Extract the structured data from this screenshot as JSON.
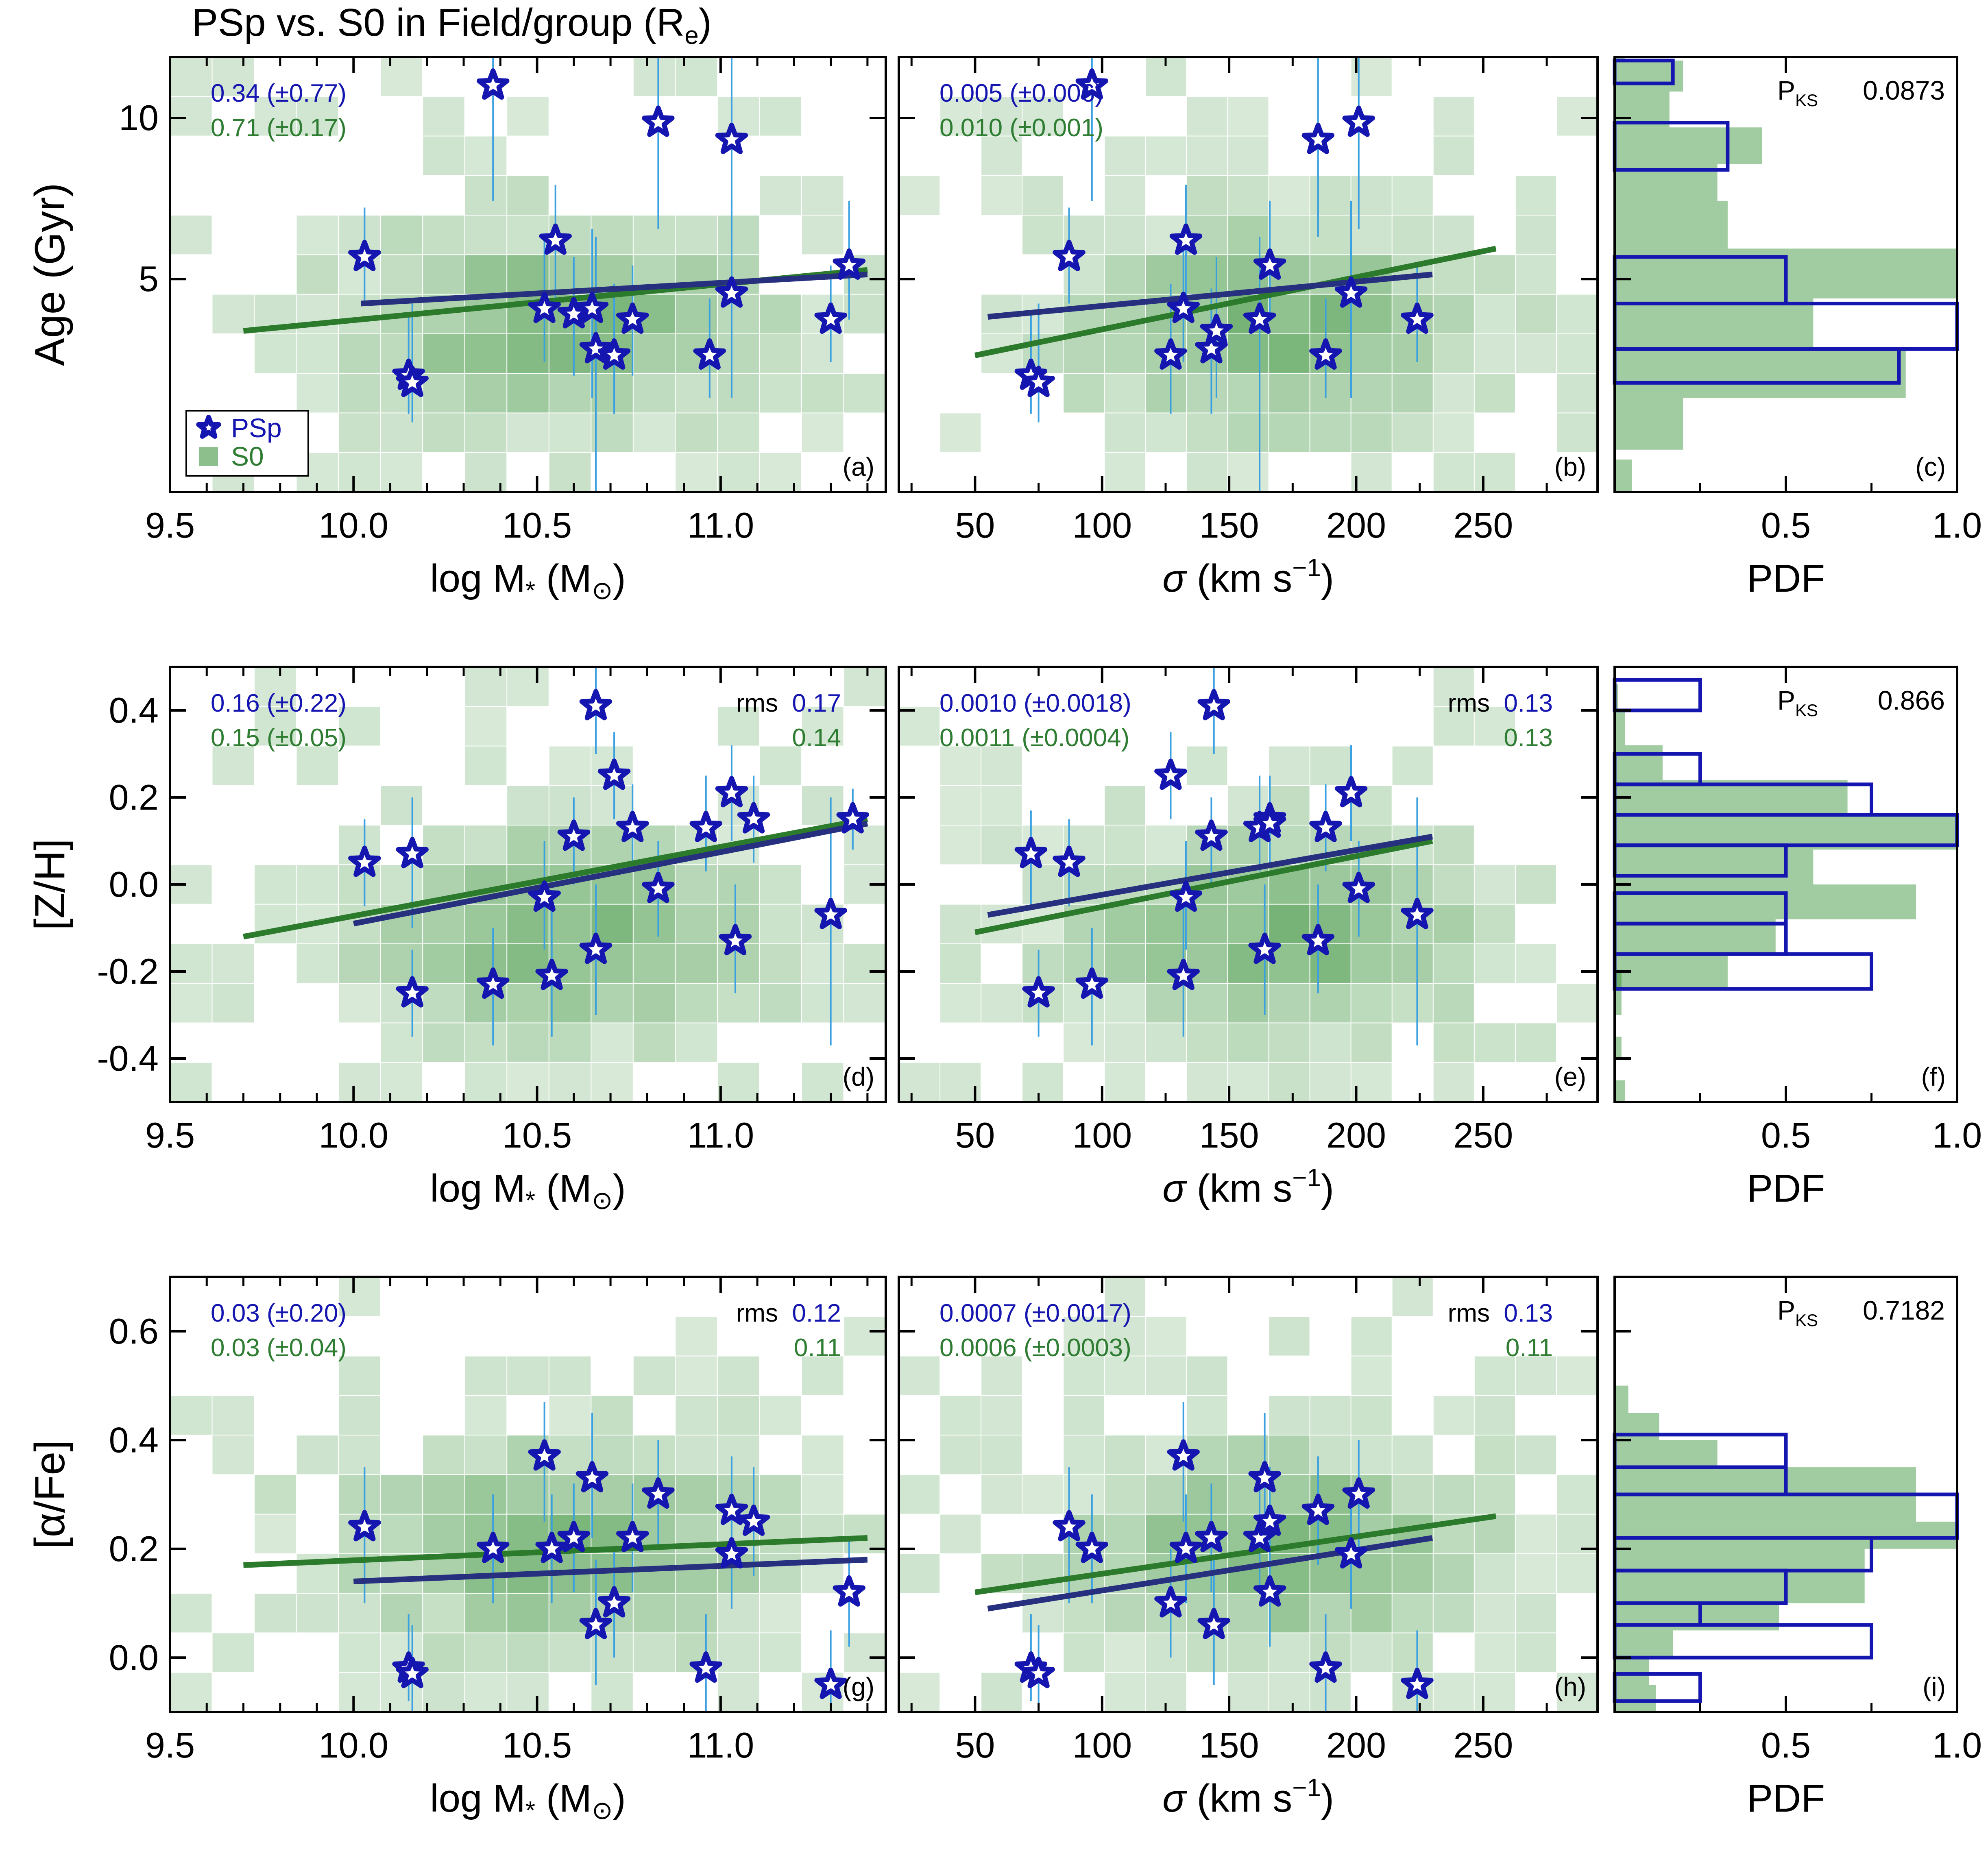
{
  "figure": {
    "title": "PSp vs. S0 in Field/group (R",
    "title_sub": "e",
    "title_close": ")"
  },
  "colors": {
    "psp": "#1515b0",
    "s0": "#2e7d32",
    "psp_fit": "#27307e",
    "s0_fit": "#2c7a2c",
    "err": "#3aa0e0",
    "cell": "#2e8b2e"
  },
  "legend": {
    "psp": "PSp",
    "s0": "S0"
  },
  "pks_label": "P",
  "pks_sub": "KS",
  "axes": {
    "mass_label": "log M",
    "mass_label_star": "*",
    "mass_label_open": " (M",
    "mass_label_close": ")",
    "sigma_symbol": "σ",
    "sigma_label": " (km s",
    "sigma_exp": "−1",
    "sigma_close": ")",
    "pdf_label": "PDF",
    "mass_ticks": [
      "9.5",
      "10.0",
      "10.5",
      "11.0"
    ],
    "sigma_ticks": [
      "50",
      "100",
      "150",
      "200",
      "250"
    ],
    "pdf_ticks": [
      "0.5",
      "1.0"
    ]
  },
  "chart_data": [
    {
      "type": "scatter",
      "panel": "a",
      "ylabel": "Age (Gyr)",
      "ylog": true,
      "xlim": [
        9.5,
        11.45
      ],
      "ylim": [
        2.0,
        13.0
      ],
      "yticks": [
        "5",
        "10"
      ],
      "ytick_values": [
        5,
        10
      ],
      "psp_fit_text": "0.34  (±0.77)",
      "s0_fit_text": "0.71  (±0.17)",
      "psp_line": [
        [
          10.02,
          4.5
        ],
        [
          11.4,
          5.1
        ]
      ],
      "s0_line": [
        [
          9.7,
          4.0
        ],
        [
          11.4,
          5.2
        ]
      ],
      "psp_points": [
        [
          10.03,
          5.5,
          4.5,
          6.8
        ],
        [
          10.15,
          3.3,
          2.8,
          4.3
        ],
        [
          10.16,
          3.2,
          2.7,
          4.5
        ],
        [
          10.38,
          11.5,
          7.0,
          13.0
        ],
        [
          10.52,
          4.4,
          3.5,
          6.0
        ],
        [
          10.55,
          5.9,
          4.5,
          7.5
        ],
        [
          10.6,
          4.3,
          3.3,
          5.5
        ],
        [
          10.65,
          4.4,
          3.0,
          6.2
        ],
        [
          10.66,
          3.7,
          2.0,
          6.0
        ],
        [
          10.71,
          3.6,
          2.8,
          4.9
        ],
        [
          10.76,
          4.2,
          3.3,
          5.3
        ],
        [
          10.83,
          9.8,
          6.2,
          13.0
        ],
        [
          10.97,
          3.6,
          3.0,
          4.6
        ],
        [
          11.03,
          4.7,
          3.0,
          7.0
        ],
        [
          11.03,
          9.1,
          6.0,
          13.0
        ],
        [
          11.3,
          4.2,
          3.5,
          5.3
        ],
        [
          11.35,
          5.3,
          4.2,
          7.0
        ]
      ]
    },
    {
      "type": "scatter",
      "panel": "b",
      "ylabel": "",
      "ylog": true,
      "xlim": [
        20,
        295
      ],
      "ylim": [
        2.0,
        13.0
      ],
      "yticks": [
        "5",
        "10"
      ],
      "ytick_values": [
        5,
        10
      ],
      "psp_fit_text": "0.005  (±0.006)",
      "s0_fit_text": "0.010  (±0.001)",
      "psp_line": [
        [
          55,
          4.25
        ],
        [
          230,
          5.1
        ]
      ],
      "s0_line": [
        [
          50,
          3.6
        ],
        [
          255,
          5.7
        ]
      ],
      "psp_points": [
        [
          72,
          3.3,
          2.8,
          4.3
        ],
        [
          75,
          3.2,
          2.7,
          4.5
        ],
        [
          87,
          5.5,
          4.5,
          6.8
        ],
        [
          96,
          11.5,
          7.0,
          13.0
        ],
        [
          127,
          3.6,
          2.8,
          4.9
        ],
        [
          132,
          4.4,
          3.5,
          6.0
        ],
        [
          133,
          5.9,
          4.5,
          7.5
        ],
        [
          143,
          3.7,
          2.8,
          4.8
        ],
        [
          145,
          4.0,
          3.0,
          5.5
        ],
        [
          162,
          4.2,
          2.0,
          6.0
        ],
        [
          166,
          5.3,
          4.2,
          7.0
        ],
        [
          185,
          9.1,
          6.0,
          13.0
        ],
        [
          188,
          3.6,
          3.0,
          4.6
        ],
        [
          198,
          4.7,
          3.0,
          7.0
        ],
        [
          201,
          9.8,
          6.2,
          13.0
        ],
        [
          224,
          4.2,
          3.5,
          5.3
        ]
      ]
    },
    {
      "type": "scatter",
      "panel": "d",
      "ylabel": "[Z/H]",
      "ylog": false,
      "xlim": [
        9.5,
        11.45
      ],
      "ylim": [
        -0.5,
        0.5
      ],
      "yticks": [
        "-0.4",
        "-0.2",
        "0.0",
        "0.2",
        "0.4"
      ],
      "ytick_values": [
        -0.4,
        -0.2,
        0.0,
        0.2,
        0.4
      ],
      "psp_fit_text": "0.16  (±0.22)",
      "s0_fit_text": "0.15  (±0.05)",
      "rms_label": "rms",
      "psp_rms": "0.17",
      "s0_rms": "0.14",
      "psp_line": [
        [
          10.0,
          -0.09
        ],
        [
          11.4,
          0.14
        ]
      ],
      "s0_line": [
        [
          9.7,
          -0.12
        ],
        [
          11.4,
          0.15
        ]
      ],
      "psp_points": [
        [
          10.03,
          0.05,
          -0.05,
          0.15
        ],
        [
          10.16,
          0.07,
          -0.1,
          0.2
        ],
        [
          10.16,
          -0.25,
          -0.35,
          -0.15
        ],
        [
          10.38,
          -0.23,
          -0.37,
          -0.1
        ],
        [
          10.52,
          -0.03,
          -0.15,
          0.1
        ],
        [
          10.54,
          -0.21,
          -0.35,
          -0.05
        ],
        [
          10.6,
          0.11,
          0.0,
          0.2
        ],
        [
          10.66,
          -0.15,
          -0.3,
          0.0
        ],
        [
          10.66,
          0.41,
          0.3,
          0.5
        ],
        [
          10.71,
          0.25,
          0.15,
          0.35
        ],
        [
          10.76,
          0.13,
          0.03,
          0.23
        ],
        [
          10.83,
          -0.01,
          -0.12,
          0.1
        ],
        [
          10.96,
          0.13,
          0.03,
          0.25
        ],
        [
          11.03,
          0.21,
          0.1,
          0.32
        ],
        [
          11.04,
          -0.13,
          -0.25,
          0.0
        ],
        [
          11.09,
          0.15,
          0.05,
          0.25
        ],
        [
          11.3,
          -0.07,
          -0.37,
          0.2
        ],
        [
          11.36,
          0.15,
          0.08,
          0.22
        ]
      ]
    },
    {
      "type": "scatter",
      "panel": "e",
      "ylabel": "",
      "ylog": false,
      "xlim": [
        20,
        295
      ],
      "ylim": [
        -0.5,
        0.5
      ],
      "yticks": [
        "-0.4",
        "-0.2",
        "0.0",
        "0.2",
        "0.4"
      ],
      "ytick_values": [
        -0.4,
        -0.2,
        0.0,
        0.2,
        0.4
      ],
      "psp_fit_text": "0.0010  (±0.0018)",
      "s0_fit_text": "0.0011  (±0.0004)",
      "rms_label": "rms",
      "psp_rms": "0.13",
      "s0_rms": "0.13",
      "psp_line": [
        [
          55,
          -0.07
        ],
        [
          230,
          0.11
        ]
      ],
      "s0_line": [
        [
          50,
          -0.11
        ],
        [
          230,
          0.1
        ]
      ],
      "psp_points": [
        [
          72,
          0.07,
          -0.05,
          0.17
        ],
        [
          75,
          -0.25,
          -0.35,
          -0.15
        ],
        [
          87,
          0.05,
          -0.05,
          0.15
        ],
        [
          96,
          -0.23,
          -0.37,
          -0.1
        ],
        [
          127,
          0.25,
          0.15,
          0.35
        ],
        [
          132,
          -0.21,
          -0.35,
          -0.05
        ],
        [
          133,
          -0.03,
          -0.15,
          0.1
        ],
        [
          143,
          0.11,
          0.0,
          0.2
        ],
        [
          144,
          0.41,
          0.3,
          0.5
        ],
        [
          162,
          0.13,
          0.03,
          0.25
        ],
        [
          164,
          -0.15,
          -0.3,
          0.0
        ],
        [
          166,
          0.15,
          0.05,
          0.25
        ],
        [
          166,
          0.14,
          0.04,
          0.24
        ],
        [
          185,
          -0.13,
          -0.25,
          0.0
        ],
        [
          188,
          0.13,
          0.03,
          0.23
        ],
        [
          198,
          0.21,
          0.1,
          0.32
        ],
        [
          201,
          -0.01,
          -0.12,
          0.1
        ],
        [
          224,
          -0.07,
          -0.37,
          0.2
        ]
      ]
    },
    {
      "type": "scatter",
      "panel": "g",
      "ylabel": "[α/Fe]",
      "ylog": false,
      "xlim": [
        9.5,
        11.45
      ],
      "ylim": [
        -0.1,
        0.7
      ],
      "yticks": [
        "0.0",
        "0.2",
        "0.4",
        "0.6"
      ],
      "ytick_values": [
        0.0,
        0.2,
        0.4,
        0.6
      ],
      "psp_fit_text": "0.03  (±0.20)",
      "s0_fit_text": "0.03  (±0.04)",
      "rms_label": "rms",
      "psp_rms": "0.12",
      "s0_rms": "0.11",
      "psp_line": [
        [
          10.0,
          0.14
        ],
        [
          11.4,
          0.18
        ]
      ],
      "s0_line": [
        [
          9.7,
          0.17
        ],
        [
          11.4,
          0.22
        ]
      ],
      "psp_points": [
        [
          10.03,
          0.24,
          0.1,
          0.35
        ],
        [
          10.15,
          -0.02,
          -0.08,
          0.08
        ],
        [
          10.16,
          -0.03,
          -0.1,
          0.06
        ],
        [
          10.38,
          0.2,
          0.1,
          0.3
        ],
        [
          10.52,
          0.37,
          0.25,
          0.47
        ],
        [
          10.54,
          0.2,
          0.1,
          0.3
        ],
        [
          10.6,
          0.22,
          0.12,
          0.32
        ],
        [
          10.65,
          0.33,
          0.22,
          0.45
        ],
        [
          10.66,
          0.06,
          -0.05,
          0.18
        ],
        [
          10.71,
          0.1,
          0.0,
          0.2
        ],
        [
          10.76,
          0.22,
          0.12,
          0.32
        ],
        [
          10.83,
          0.3,
          0.2,
          0.4
        ],
        [
          10.96,
          -0.02,
          -0.1,
          0.08
        ],
        [
          11.03,
          0.27,
          0.17,
          0.37
        ],
        [
          11.03,
          0.19,
          0.09,
          0.29
        ],
        [
          11.09,
          0.25,
          0.15,
          0.35
        ],
        [
          11.3,
          -0.05,
          -0.1,
          0.05
        ],
        [
          11.35,
          0.12,
          0.02,
          0.22
        ]
      ]
    },
    {
      "type": "scatter",
      "panel": "h",
      "ylabel": "",
      "ylog": false,
      "xlim": [
        20,
        295
      ],
      "ylim": [
        -0.1,
        0.7
      ],
      "yticks": [
        "0.0",
        "0.2",
        "0.4",
        "0.6"
      ],
      "ytick_values": [
        0.0,
        0.2,
        0.4,
        0.6
      ],
      "psp_fit_text": "0.0007  (±0.0017)",
      "s0_fit_text": "0.0006  (±0.0003)",
      "rms_label": "rms",
      "psp_rms": "0.13",
      "s0_rms": "0.11",
      "psp_line": [
        [
          55,
          0.09
        ],
        [
          230,
          0.22
        ]
      ],
      "s0_line": [
        [
          50,
          0.12
        ],
        [
          255,
          0.26
        ]
      ],
      "psp_points": [
        [
          72,
          -0.02,
          -0.08,
          0.08
        ],
        [
          75,
          -0.03,
          -0.1,
          0.06
        ],
        [
          87,
          0.24,
          0.1,
          0.35
        ],
        [
          96,
          0.2,
          0.1,
          0.3
        ],
        [
          127,
          0.1,
          0.0,
          0.2
        ],
        [
          132,
          0.37,
          0.25,
          0.47
        ],
        [
          133,
          0.2,
          0.1,
          0.3
        ],
        [
          143,
          0.22,
          0.12,
          0.32
        ],
        [
          144,
          0.06,
          -0.05,
          0.18
        ],
        [
          162,
          0.22,
          0.12,
          0.32
        ],
        [
          164,
          0.33,
          0.22,
          0.45
        ],
        [
          166,
          0.25,
          0.15,
          0.35
        ],
        [
          166,
          0.12,
          0.02,
          0.22
        ],
        [
          185,
          0.27,
          0.17,
          0.37
        ],
        [
          188,
          -0.02,
          -0.1,
          0.08
        ],
        [
          198,
          0.19,
          0.09,
          0.29
        ],
        [
          201,
          0.3,
          0.2,
          0.4
        ],
        [
          224,
          -0.05,
          -0.1,
          0.05
        ]
      ]
    },
    {
      "type": "bar",
      "orientation": "horizontal",
      "panel": "c",
      "xlabel": "PDF",
      "pks_value": "0.0873",
      "ylog": true,
      "ylim": [
        2.0,
        13.0
      ],
      "xlim": [
        0,
        1
      ],
      "s0_bins": [
        [
          2.0,
          2.3,
          0.05
        ],
        [
          2.4,
          3.0,
          0.2
        ],
        [
          3.0,
          3.7,
          0.85
        ],
        [
          3.7,
          4.6,
          0.58
        ],
        [
          4.6,
          5.7,
          1.0
        ],
        [
          5.7,
          7.0,
          0.33
        ],
        [
          7.0,
          8.2,
          0.3
        ],
        [
          8.2,
          9.6,
          0.43
        ],
        [
          9.6,
          11.2,
          0.16
        ],
        [
          11.2,
          12.8,
          0.2
        ],
        [
          12.8,
          13.0,
          0.03
        ]
      ],
      "psp_bins": [
        [
          3.2,
          3.7,
          0.83
        ],
        [
          3.7,
          4.5,
          1.0
        ],
        [
          4.5,
          5.5,
          0.5
        ],
        [
          5.5,
          6.7,
          0.0
        ],
        [
          6.7,
          8.0,
          0.0
        ],
        [
          8.0,
          9.8,
          0.33
        ],
        [
          9.8,
          11.6,
          0.0
        ],
        [
          11.6,
          12.8,
          0.17
        ]
      ]
    },
    {
      "type": "bar",
      "orientation": "horizontal",
      "panel": "f",
      "xlabel": "PDF",
      "pks_value": "0.866",
      "ylog": false,
      "ylim": [
        -0.5,
        0.5
      ],
      "xlim": [
        0,
        1
      ],
      "s0_bins": [
        [
          -0.5,
          -0.45,
          0.03
        ],
        [
          -0.4,
          -0.35,
          0.02
        ],
        [
          -0.3,
          -0.25,
          0.02
        ],
        [
          -0.25,
          -0.2,
          0.02
        ],
        [
          -0.24,
          -0.16,
          0.33
        ],
        [
          -0.16,
          -0.08,
          0.47
        ],
        [
          -0.08,
          0.0,
          0.88
        ],
        [
          0.0,
          0.08,
          0.58
        ],
        [
          0.08,
          0.16,
          1.0
        ],
        [
          0.16,
          0.24,
          0.68
        ],
        [
          0.24,
          0.32,
          0.14
        ],
        [
          0.32,
          0.4,
          0.03
        ],
        [
          0.4,
          0.46,
          0.01
        ]
      ],
      "psp_bins": [
        [
          -0.24,
          -0.16,
          0.75
        ],
        [
          -0.16,
          -0.09,
          0.5
        ],
        [
          -0.09,
          -0.02,
          0.5
        ],
        [
          0.02,
          0.09,
          0.5
        ],
        [
          0.09,
          0.16,
          1.0
        ],
        [
          0.16,
          0.23,
          0.75
        ],
        [
          0.23,
          0.3,
          0.25
        ],
        [
          0.4,
          0.47,
          0.25
        ]
      ]
    },
    {
      "type": "bar",
      "orientation": "horizontal",
      "panel": "i",
      "xlabel": "PDF",
      "pks_value": "0.7182",
      "ylog": false,
      "ylim": [
        -0.1,
        0.7
      ],
      "xlim": [
        0,
        1
      ],
      "s0_bins": [
        [
          -0.1,
          -0.05,
          0.12
        ],
        [
          -0.05,
          0.0,
          0.1
        ],
        [
          0.0,
          0.05,
          0.17
        ],
        [
          0.05,
          0.1,
          0.48
        ],
        [
          0.1,
          0.15,
          0.73
        ],
        [
          0.15,
          0.2,
          0.73
        ],
        [
          0.2,
          0.25,
          1.0
        ],
        [
          0.25,
          0.3,
          0.88
        ],
        [
          0.3,
          0.35,
          0.88
        ],
        [
          0.35,
          0.4,
          0.3
        ],
        [
          0.4,
          0.45,
          0.13
        ],
        [
          0.45,
          0.5,
          0.04
        ]
      ],
      "psp_bins": [
        [
          -0.08,
          -0.03,
          0.25
        ],
        [
          0.0,
          0.06,
          0.75
        ],
        [
          0.06,
          0.1,
          0.25
        ],
        [
          0.1,
          0.16,
          0.5
        ],
        [
          0.16,
          0.22,
          0.75
        ],
        [
          0.22,
          0.3,
          1.0
        ],
        [
          0.3,
          0.35,
          0.5
        ],
        [
          0.35,
          0.41,
          0.5
        ]
      ]
    }
  ]
}
